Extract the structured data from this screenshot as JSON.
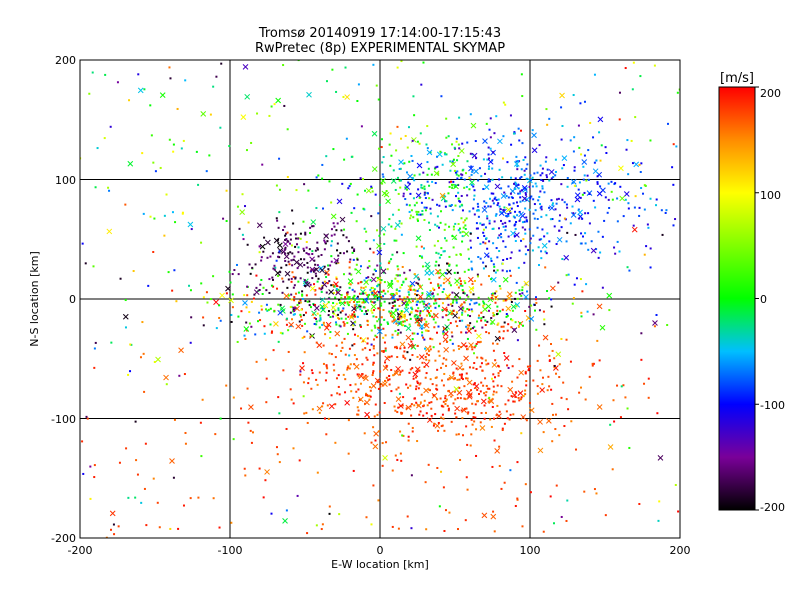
{
  "chart_data": [
    {
      "type": "scatter",
      "title": "Tromsø 20140919 17:14:00-17:15:43",
      "subtitle": "RwPretec (8p) EXPERIMENTAL SKYMAP",
      "xlabel": "E-W location [km]",
      "ylabel": "N-S location [km]",
      "xlim": [
        -200,
        200
      ],
      "ylim": [
        -200,
        200
      ],
      "x_ticks": [
        "-200",
        "-100",
        "0",
        "100",
        "200"
      ],
      "y_ticks": [
        "-200",
        "-100",
        "0",
        "100",
        "200"
      ],
      "grid": true,
      "grid_lines_at": [
        -100,
        0,
        100
      ],
      "marker_types": [
        "dot",
        "cross"
      ],
      "approx_point_count": 3000,
      "clusters": [
        {
          "description": "blue / cyan / green",
          "x": [
            0,
            150
          ],
          "y": [
            30,
            130
          ],
          "velocity_range": [
            -130,
            60
          ]
        },
        {
          "description": "mixed dense core",
          "x": [
            -70,
            90
          ],
          "y": [
            -30,
            20
          ],
          "velocity_range": [
            -200,
            200
          ]
        },
        {
          "description": "red",
          "x": [
            -40,
            110
          ],
          "y": [
            -110,
            -30
          ],
          "velocity_range": [
            150,
            200
          ]
        },
        {
          "description": "black / purple",
          "x": [
            -80,
            -20
          ],
          "y": [
            0,
            60
          ],
          "velocity_range": [
            -200,
            -150
          ]
        }
      ]
    },
    {
      "type": "heatmap",
      "colorbar_title": "[m/s]",
      "range": [
        -200,
        200
      ],
      "ticks": [
        "200",
        "100",
        "0",
        "-100",
        "-200"
      ],
      "colormap_stops": [
        {
          "value": -200,
          "color": "#000000"
        },
        {
          "value": -150,
          "color": "#7a0099"
        },
        {
          "value": -100,
          "color": "#0000ff"
        },
        {
          "value": -50,
          "color": "#00bfff"
        },
        {
          "value": 0,
          "color": "#00ff00"
        },
        {
          "value": 100,
          "color": "#ffff00"
        },
        {
          "value": 150,
          "color": "#ff8c00"
        },
        {
          "value": 200,
          "color": "#ff0000"
        }
      ]
    }
  ]
}
